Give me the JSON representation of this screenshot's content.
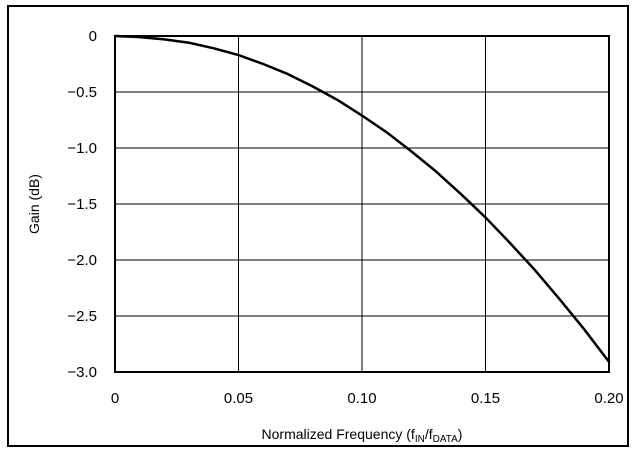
{
  "chart_data": {
    "type": "line",
    "xlabel_prefix": "Normalized Frequency (f",
    "xlabel_sub1": "IN",
    "xlabel_mid": "/f",
    "xlabel_sub2": "DATA",
    "xlabel_suffix": ")",
    "ylabel": "Gain (dB)",
    "xlim": [
      0,
      0.2
    ],
    "ylim": [
      -3.0,
      0
    ],
    "grid": true,
    "x_ticks": [
      0,
      0.05,
      0.1,
      0.15,
      0.2
    ],
    "x_tick_labels": [
      "0",
      "0.05",
      "0.10",
      "0.15",
      "0.20"
    ],
    "y_ticks": [
      0,
      -0.5,
      -1.0,
      -1.5,
      -2.0,
      -2.5,
      -3.0
    ],
    "y_tick_labels": [
      "0",
      "−0.5",
      "−1.0",
      "−1.5",
      "−2.0",
      "−2.5",
      "−3.0"
    ],
    "series": [
      {
        "color": "#000000",
        "x": [
          0,
          0.01,
          0.02,
          0.03,
          0.04,
          0.05,
          0.06,
          0.07,
          0.08,
          0.09,
          0.1,
          0.11,
          0.12,
          0.13,
          0.14,
          0.15,
          0.16,
          0.17,
          0.18,
          0.19,
          0.2
        ],
        "y": [
          0,
          -0.01,
          -0.03,
          -0.06,
          -0.11,
          -0.17,
          -0.25,
          -0.34,
          -0.45,
          -0.57,
          -0.71,
          -0.86,
          -1.03,
          -1.21,
          -1.41,
          -1.62,
          -1.85,
          -2.09,
          -2.35,
          -2.62,
          -2.91
        ]
      }
    ]
  }
}
